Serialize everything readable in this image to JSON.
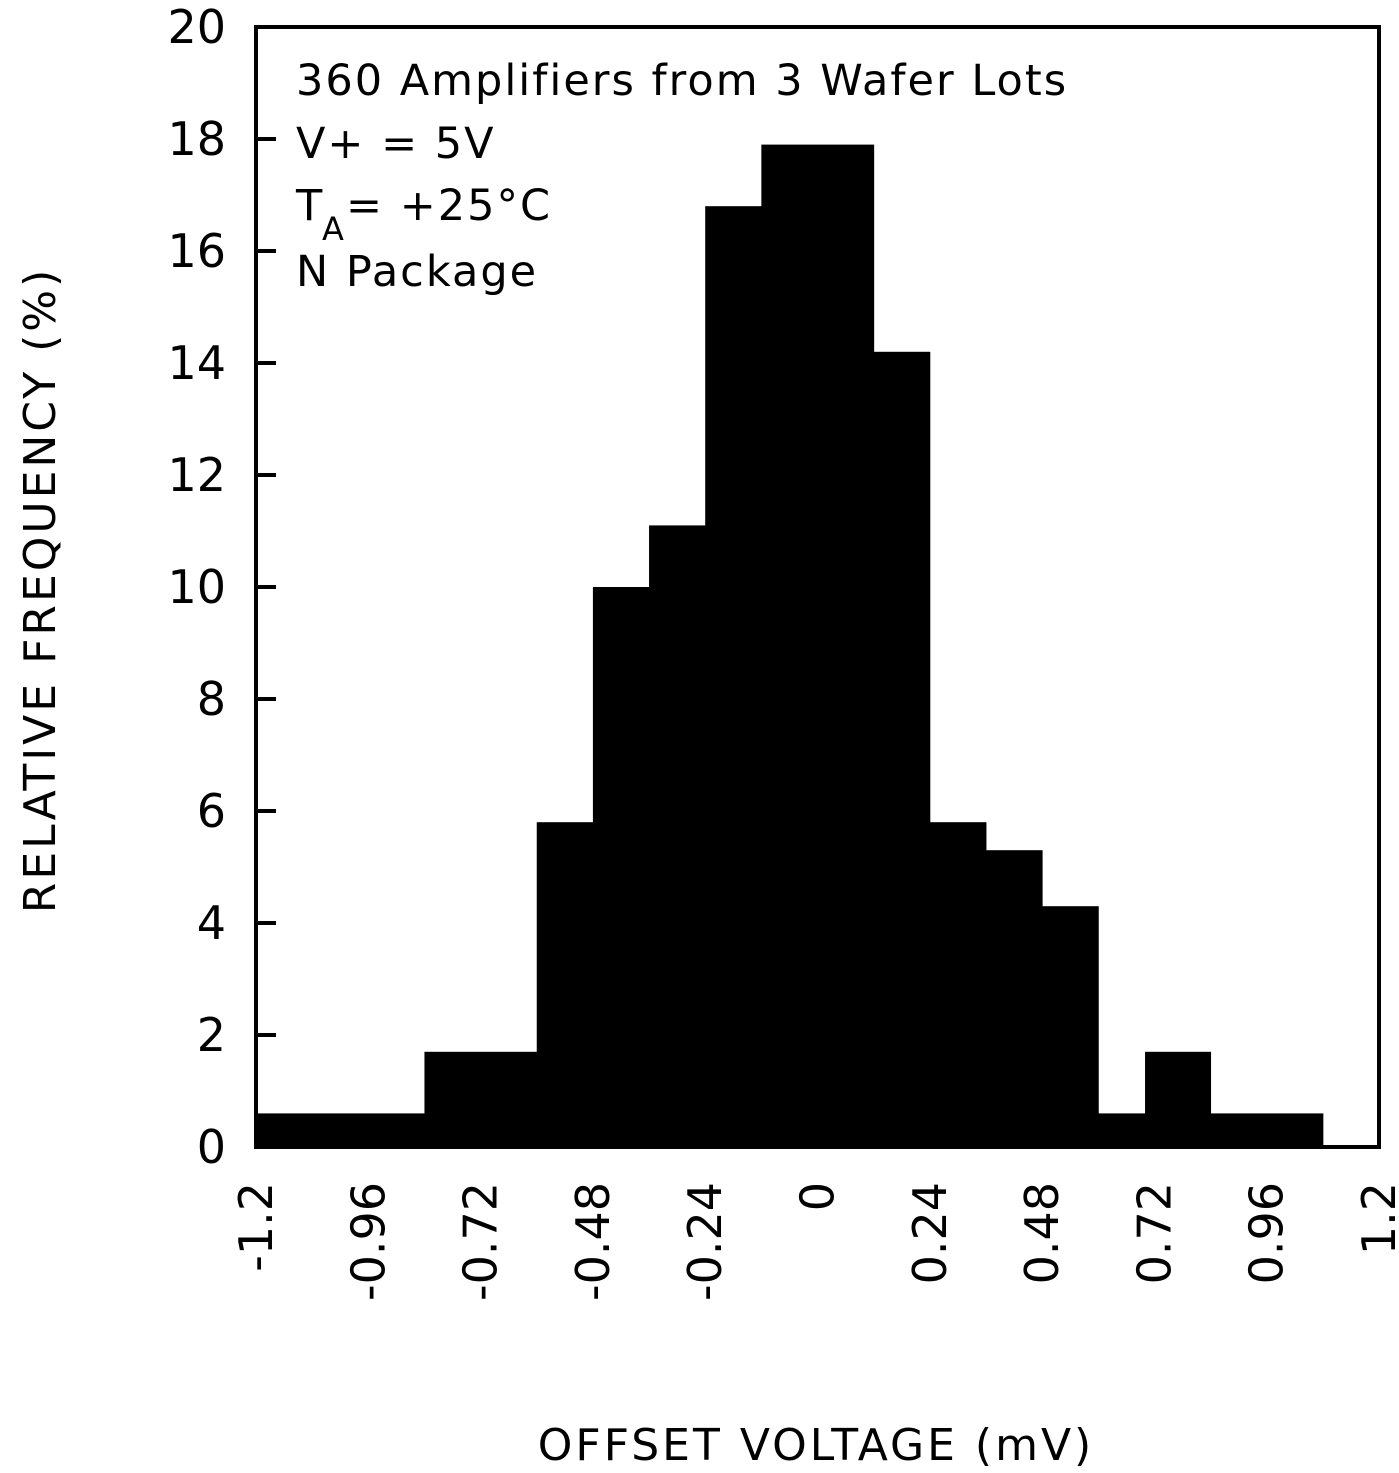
{
  "chart_data": {
    "type": "bar",
    "title": "",
    "xlabel": "OFFSET VOLTAGE (mV)",
    "ylabel": "RELATIVE FREQUENCY (%)",
    "xlim": [
      -1.2,
      1.2
    ],
    "ylim": [
      0,
      20
    ],
    "x_ticks": [
      "-1.2",
      "-0.96",
      "-0.72",
      "-0.48",
      "-0.24",
      "0",
      "0.24",
      "0.48",
      "0.72",
      "0.96",
      "1.2"
    ],
    "x_tick_values": [
      -1.2,
      -0.96,
      -0.72,
      -0.48,
      -0.24,
      0,
      0.24,
      0.48,
      0.72,
      0.96,
      1.2
    ],
    "y_ticks": [
      "0",
      "2",
      "4",
      "6",
      "8",
      "10",
      "12",
      "14",
      "16",
      "18",
      "20"
    ],
    "y_tick_values": [
      0,
      2,
      4,
      6,
      8,
      10,
      12,
      14,
      16,
      18,
      20
    ],
    "bins": [
      {
        "x0": -1.2,
        "x1": -0.84,
        "value": 0.6
      },
      {
        "x0": -0.84,
        "x1": -0.6,
        "value": 1.7
      },
      {
        "x0": -0.6,
        "x1": -0.48,
        "value": 5.8
      },
      {
        "x0": -0.48,
        "x1": -0.36,
        "value": 10.0
      },
      {
        "x0": -0.36,
        "x1": -0.24,
        "value": 11.1
      },
      {
        "x0": -0.24,
        "x1": -0.12,
        "value": 16.8
      },
      {
        "x0": -0.12,
        "x1": 0.12,
        "value": 17.9
      },
      {
        "x0": 0.12,
        "x1": 0.24,
        "value": 14.2
      },
      {
        "x0": 0.24,
        "x1": 0.36,
        "value": 5.8
      },
      {
        "x0": 0.36,
        "x1": 0.48,
        "value": 5.3
      },
      {
        "x0": 0.48,
        "x1": 0.6,
        "value": 4.3
      },
      {
        "x0": 0.6,
        "x1": 0.7,
        "value": 0.6
      },
      {
        "x0": 0.7,
        "x1": 0.84,
        "value": 1.7
      },
      {
        "x0": 0.84,
        "x1": 1.08,
        "value": 0.6
      }
    ],
    "annotations": {
      "line1": "360 Amplifiers from 3 Wafer Lots",
      "line2": "V+ = 5V",
      "line3_main": "T",
      "line3_sub": "A",
      "line3_rest": " = +25°C",
      "line4": "N Package"
    },
    "colors": {
      "bars": "#000000",
      "frame": "#000000",
      "background": "#ffffff"
    }
  }
}
